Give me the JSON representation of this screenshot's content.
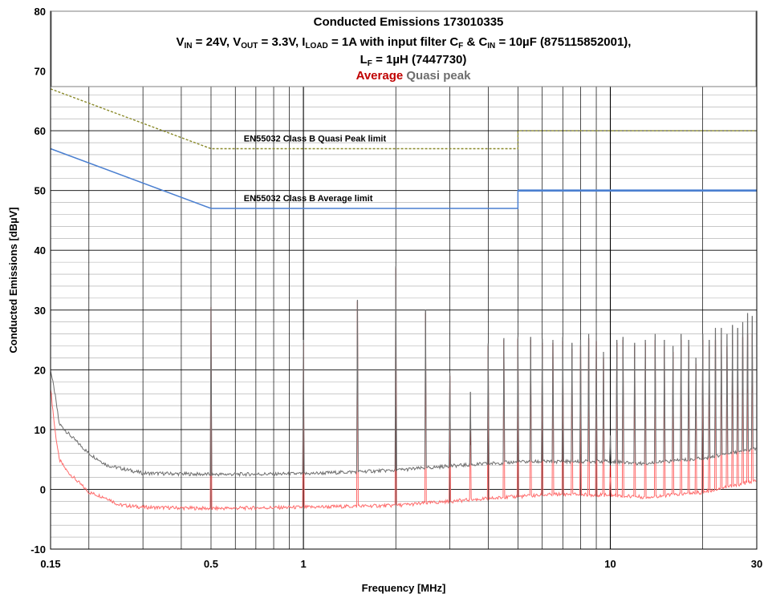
{
  "chart_data": {
    "type": "line",
    "title": "Conducted Emissions 173010335",
    "subtitle_line1": {
      "parts": [
        {
          "t": "V"
        },
        {
          "t": "IN",
          "sub": true
        },
        {
          "t": " = 24V, V"
        },
        {
          "t": "OUT",
          "sub": true
        },
        {
          "t": " = 3.3V, I"
        },
        {
          "t": "LOAD",
          "sub": true
        },
        {
          "t": " = 1A with input filter C"
        },
        {
          "t": "F",
          "sub": true
        },
        {
          "t": " & C"
        },
        {
          "t": "IN",
          "sub": true
        },
        {
          "t": " = 10µF (875115852001),"
        }
      ]
    },
    "subtitle_line2": {
      "parts": [
        {
          "t": "L"
        },
        {
          "t": "F",
          "sub": true
        },
        {
          "t": " = 1µH (7447730)"
        }
      ]
    },
    "legend": [
      {
        "label": "Average",
        "color": "#c00000"
      },
      {
        "label": "Quasi peak",
        "color": "#6e6e6e"
      }
    ],
    "xlabel": "Frequency [MHz]",
    "ylabel": "Conducted Emissions [dBµV]",
    "x_scale": "log",
    "xlim": [
      0.15,
      30
    ],
    "ylim": [
      -10,
      80
    ],
    "grid": true,
    "x_ticks": [
      {
        "v": 0.15,
        "label": "0.15"
      },
      {
        "v": 0.5,
        "label": "0.5"
      },
      {
        "v": 1,
        "label": "1"
      },
      {
        "v": 10,
        "label": "10"
      },
      {
        "v": 30,
        "label": "30"
      }
    ],
    "y_ticks": [
      -10,
      0,
      10,
      20,
      30,
      40,
      50,
      60,
      70,
      80
    ],
    "annotations": [
      {
        "text": "EN55032 Class B Quasi Peak limit",
        "x": 0.55,
        "y": 58.2
      },
      {
        "text": "EN55032 Class B Average limit",
        "x": 0.55,
        "y": 48.2
      }
    ],
    "limits": [
      {
        "name": "EN55032 Class B Quasi Peak limit",
        "color": "#8a8a2a",
        "dashed": true,
        "x": [
          0.15,
          0.5,
          5,
          5,
          30
        ],
        "y": [
          67,
          57,
          57,
          60,
          60
        ]
      },
      {
        "name": "EN55032 Class B Average limit",
        "color": "#4a7fd0",
        "dashed": false,
        "x": [
          0.15,
          0.5,
          5,
          5,
          30
        ],
        "y": [
          57,
          47,
          47,
          50,
          50
        ]
      }
    ],
    "series": [
      {
        "name": "Quasi peak",
        "color": "#6e6e6e",
        "baseline": {
          "x": [
            0.15,
            0.155,
            0.16,
            0.17,
            0.2,
            0.23,
            0.3,
            0.5,
            1,
            2,
            3,
            5,
            10,
            13,
            20,
            30
          ],
          "y": [
            20,
            16,
            11,
            9.5,
            6,
            4,
            2.7,
            2.5,
            2.6,
            3.2,
            3.9,
            4.6,
            4.7,
            4.3,
            5.2,
            6.8
          ]
        },
        "peaks": [
          {
            "x": 0.5,
            "y": 31
          },
          {
            "x": 1.0,
            "y": 25
          },
          {
            "x": 1.5,
            "y": 31.7
          },
          {
            "x": 2.0,
            "y": 37.3
          },
          {
            "x": 2.5,
            "y": 30
          },
          {
            "x": 3.0,
            "y": 19.5
          },
          {
            "x": 3.5,
            "y": 16.3
          },
          {
            "x": 4.0,
            "y": 24.4
          },
          {
            "x": 4.5,
            "y": 25.3
          },
          {
            "x": 5.0,
            "y": 25.5
          },
          {
            "x": 5.5,
            "y": 25.5
          },
          {
            "x": 6.0,
            "y": 25.2
          },
          {
            "x": 6.5,
            "y": 25
          },
          {
            "x": 7.0,
            "y": 25.5
          },
          {
            "x": 7.5,
            "y": 24.5
          },
          {
            "x": 8.0,
            "y": 25
          },
          {
            "x": 8.5,
            "y": 26
          },
          {
            "x": 9.0,
            "y": 25.5
          },
          {
            "x": 9.5,
            "y": 23
          },
          {
            "x": 10.0,
            "y": 9
          },
          {
            "x": 10.5,
            "y": 25
          },
          {
            "x": 11.0,
            "y": 25.5
          },
          {
            "x": 12.0,
            "y": 24.5
          },
          {
            "x": 13.0,
            "y": 25
          },
          {
            "x": 14.0,
            "y": 26
          },
          {
            "x": 15.0,
            "y": 25
          },
          {
            "x": 16.0,
            "y": 24
          },
          {
            "x": 17.0,
            "y": 26
          },
          {
            "x": 18.0,
            "y": 25
          },
          {
            "x": 19.0,
            "y": 22
          },
          {
            "x": 20.0,
            "y": 26
          },
          {
            "x": 21.0,
            "y": 25
          },
          {
            "x": 22.0,
            "y": 27
          },
          {
            "x": 23.0,
            "y": 27
          },
          {
            "x": 24.0,
            "y": 26
          },
          {
            "x": 25.0,
            "y": 27.5
          },
          {
            "x": 26.0,
            "y": 27
          },
          {
            "x": 27.0,
            "y": 28
          },
          {
            "x": 28.0,
            "y": 29.5
          },
          {
            "x": 29.0,
            "y": 29
          }
        ]
      },
      {
        "name": "Average",
        "color": "#c00000",
        "baseline": {
          "x": [
            0.15,
            0.155,
            0.16,
            0.17,
            0.2,
            0.23,
            0.25,
            0.3,
            0.5,
            1,
            2,
            3,
            5,
            7,
            10,
            13,
            20,
            30
          ],
          "y": [
            17,
            10,
            5,
            3,
            -0.5,
            -1.5,
            -2.6,
            -3,
            -3.2,
            -3,
            -2.7,
            -2,
            -1.2,
            -0.8,
            -1,
            -1.3,
            -0.5,
            1.5
          ]
        },
        "peaks": [
          {
            "x": 0.5,
            "y": 30.5
          },
          {
            "x": 1.0,
            "y": 24.5
          },
          {
            "x": 1.5,
            "y": 31.5
          },
          {
            "x": 2.0,
            "y": 37
          },
          {
            "x": 2.5,
            "y": 29.5
          },
          {
            "x": 3.0,
            "y": 19
          },
          {
            "x": 3.5,
            "y": 13.5
          },
          {
            "x": 4.0,
            "y": 24
          },
          {
            "x": 4.5,
            "y": 25
          },
          {
            "x": 5.0,
            "y": 25.2
          },
          {
            "x": 5.5,
            "y": 25
          },
          {
            "x": 6.0,
            "y": 24.5
          },
          {
            "x": 6.5,
            "y": 24.5
          },
          {
            "x": 7.0,
            "y": 24.8
          },
          {
            "x": 7.5,
            "y": 23.5
          },
          {
            "x": 8.0,
            "y": 24
          },
          {
            "x": 8.5,
            "y": 25.3
          },
          {
            "x": 9.0,
            "y": 24.8
          },
          {
            "x": 9.5,
            "y": 22
          },
          {
            "x": 10.0,
            "y": 4
          },
          {
            "x": 10.5,
            "y": 24.5
          },
          {
            "x": 11.0,
            "y": 25
          },
          {
            "x": 12.0,
            "y": 24
          },
          {
            "x": 13.0,
            "y": 24.5
          },
          {
            "x": 14.0,
            "y": 25
          },
          {
            "x": 15.0,
            "y": 24
          },
          {
            "x": 16.0,
            "y": 23
          },
          {
            "x": 17.0,
            "y": 25
          },
          {
            "x": 18.0,
            "y": 24
          },
          {
            "x": 19.0,
            "y": 21
          },
          {
            "x": 20.0,
            "y": 25
          },
          {
            "x": 21.0,
            "y": 24
          },
          {
            "x": 22.0,
            "y": 25
          },
          {
            "x": 23.0,
            "y": 25
          },
          {
            "x": 24.0,
            "y": 24
          },
          {
            "x": 25.0,
            "y": 25
          },
          {
            "x": 26.0,
            "y": 25
          },
          {
            "x": 27.0,
            "y": 25.5
          },
          {
            "x": 28.0,
            "y": 26
          },
          {
            "x": 29.0,
            "y": 26
          }
        ]
      }
    ]
  }
}
